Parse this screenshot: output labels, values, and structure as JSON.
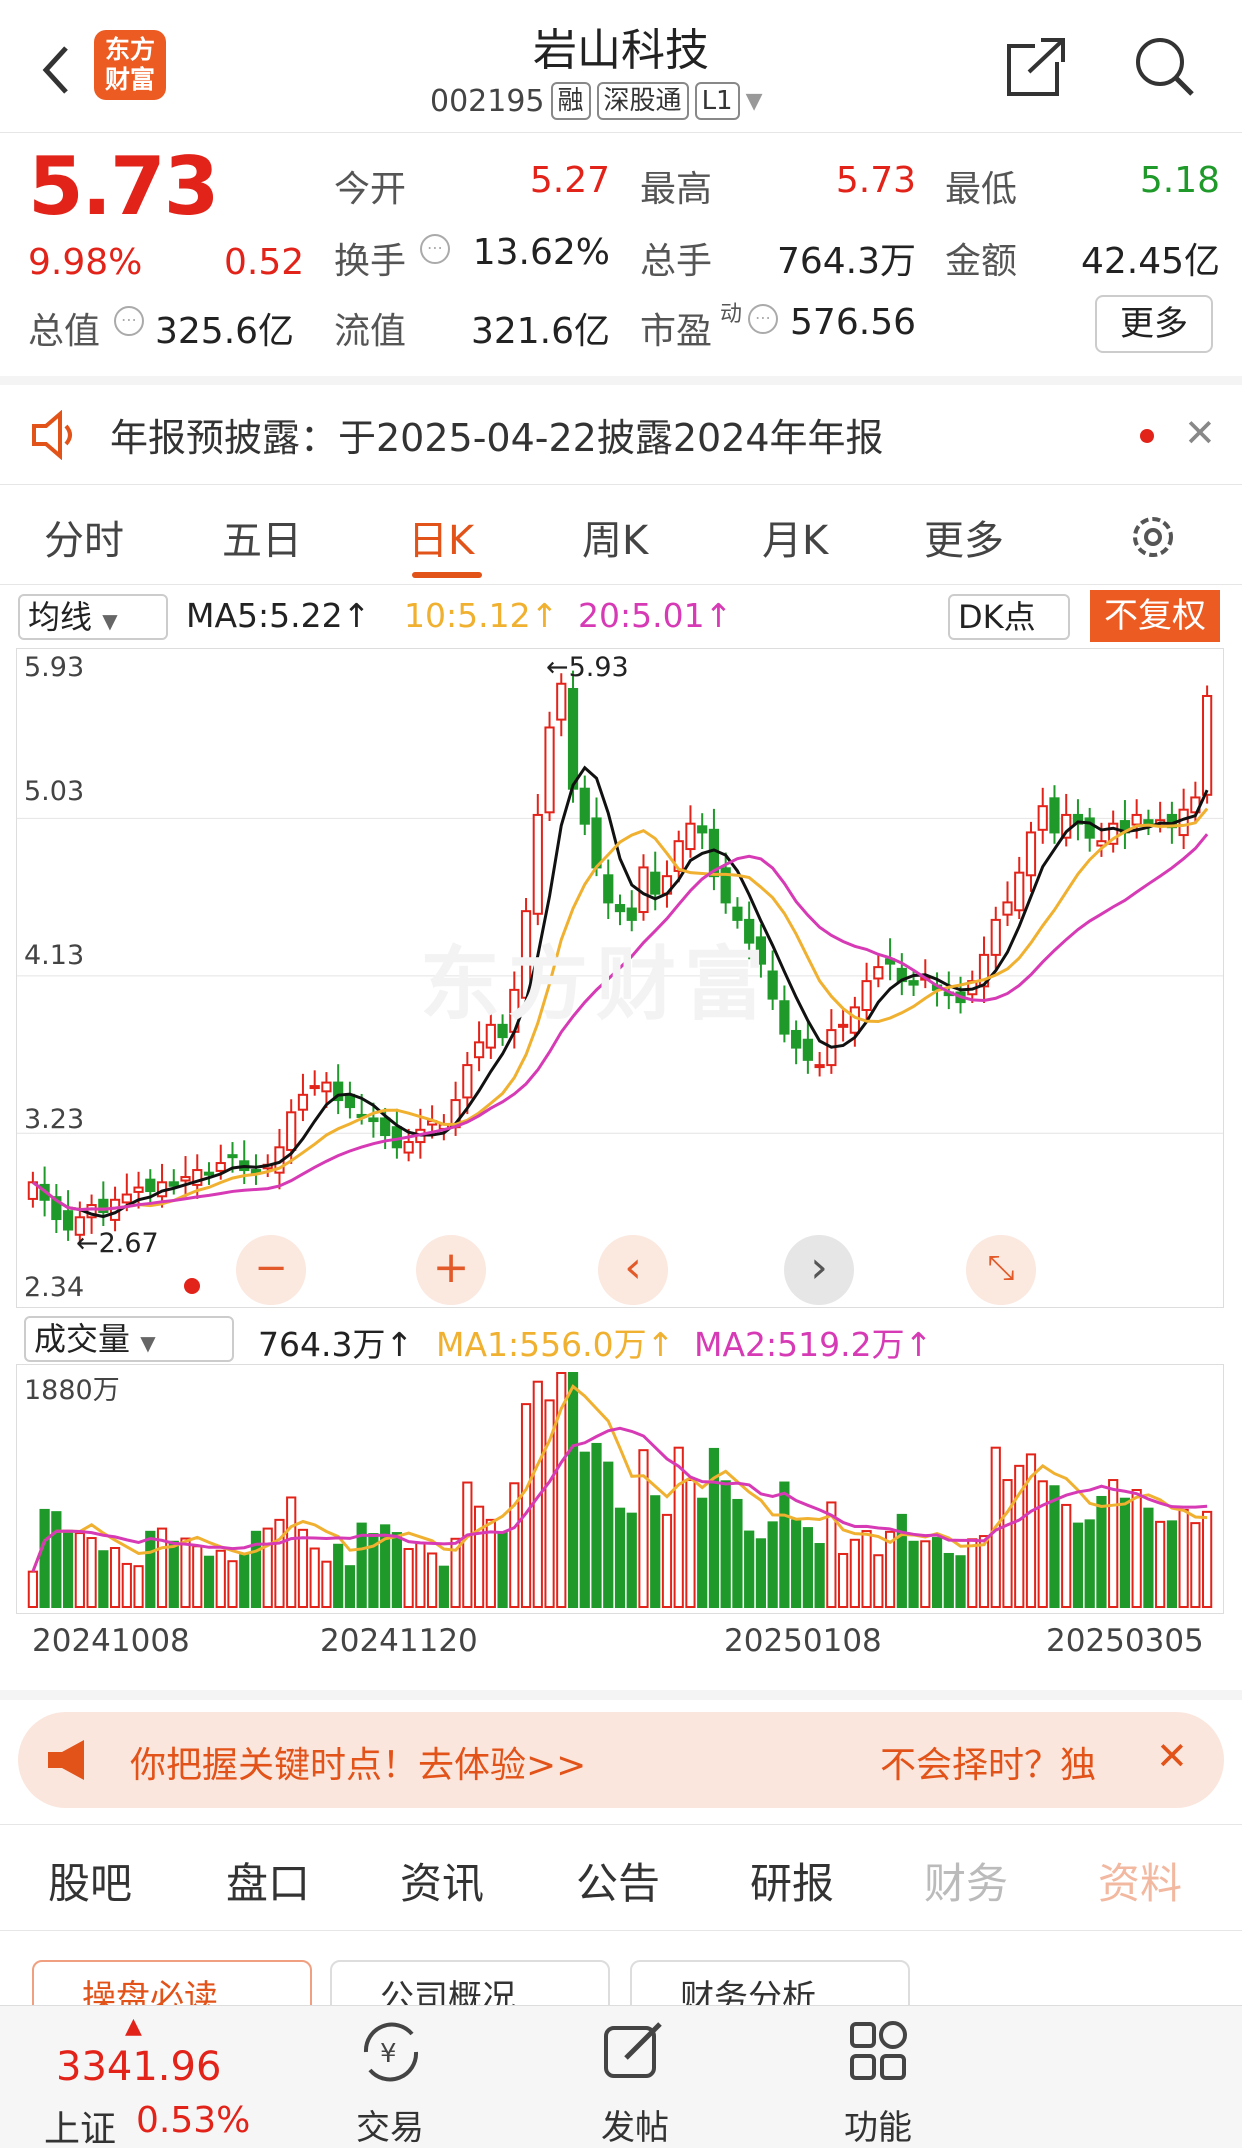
{
  "header": {
    "logo_text": "东方\n财富",
    "title": "岩山科技",
    "code": "002195",
    "tags": [
      "融",
      "深股通",
      "L1"
    ]
  },
  "quote": {
    "price": "5.73",
    "change_pct": "9.98%",
    "change": "0.52",
    "open_label": "今开",
    "open": "5.27",
    "high_label": "最高",
    "high": "5.73",
    "low_label": "最低",
    "low": "5.18",
    "turnover_label": "换手",
    "turnover": "13.62%",
    "volume_label": "总手",
    "volume": "764.3万",
    "amount_label": "金额",
    "amount": "42.45亿",
    "mktcap_label": "总值",
    "mktcap": "325.6亿",
    "float_label": "流值",
    "float": "321.6亿",
    "pe_label": "市盈",
    "pe_sup": "动",
    "pe": "576.56",
    "more_label": "更多"
  },
  "notice": {
    "text": "年报预披露：于2025-04-22披露2024年年报"
  },
  "chart_tabs": [
    "分时",
    "五日",
    "日K",
    "周K",
    "月K",
    "更多"
  ],
  "kline": {
    "indicator_select": "均线",
    "ma5": "MA5:5.22↑",
    "ma10": "10:5.12↑",
    "ma20": "20:5.01↑",
    "dk_label": "DK点",
    "adjust_label": "不复权",
    "y_ticks": [
      "5.93",
      "5.03",
      "4.13",
      "3.23",
      "2.34"
    ],
    "max_marker": "←5.93",
    "min_marker": "←2.67",
    "watermark": "东方财富"
  },
  "volume": {
    "select": "成交量",
    "value": "764.3万↑",
    "ma1": "MA1:556.0万↑",
    "ma2": "MA2:519.2万↑",
    "y_top": "1880万",
    "x_ticks": [
      "20241008",
      "20241120",
      "20250108",
      "20250305"
    ]
  },
  "chart_data": {
    "type": "candlestick",
    "ylim": [
      2.34,
      5.93
    ],
    "annotations": {
      "max": 5.93,
      "min": 2.67
    },
    "closes": [
      2.95,
      2.85,
      2.74,
      2.68,
      2.75,
      2.82,
      2.78,
      2.85,
      2.88,
      2.92,
      2.9,
      2.95,
      2.93,
      2.98,
      3.02,
      3.0,
      3.06,
      3.1,
      3.02,
      3.0,
      3.05,
      3.15,
      3.35,
      3.45,
      3.5,
      3.52,
      3.42,
      3.38,
      3.33,
      3.3,
      3.22,
      3.15,
      3.18,
      3.25,
      3.3,
      3.28,
      3.42,
      3.62,
      3.75,
      3.85,
      3.78,
      4.05,
      4.5,
      5.05,
      5.55,
      5.8,
      5.2,
      5.0,
      4.75,
      4.55,
      4.5,
      4.45,
      4.75,
      4.6,
      4.7,
      4.9,
      5.0,
      4.95,
      4.7,
      4.55,
      4.45,
      4.32,
      4.2,
      4.0,
      3.8,
      3.72,
      3.65,
      3.62,
      3.82,
      3.85,
      3.95,
      4.1,
      4.18,
      4.2,
      4.1,
      4.08,
      4.12,
      4.05,
      4.02,
      3.98,
      4.1,
      4.25,
      4.45,
      4.55,
      4.72,
      4.95,
      5.1,
      4.95,
      5.05,
      5.0,
      4.92,
      4.9,
      5.0,
      4.95,
      5.05,
      5.0,
      5.02,
      4.98,
      5.08,
      5.15,
      5.73
    ],
    "volume_ylim": [
      0,
      1880
    ],
    "volume_ma1": 556.0,
    "volume_ma2": 519.2,
    "volume_last": 764.3
  },
  "ad": {
    "text": "你把握关键时点！去体验>>",
    "right_text": "不会择时？独"
  },
  "bottom_tabs": [
    "股吧",
    "盘口",
    "资讯",
    "公告",
    "研报",
    "财务",
    "资料"
  ],
  "sub_tabs": [
    "操盘必读",
    "公司概况",
    "财务分析"
  ],
  "index": {
    "value": "3341.96",
    "name": "上证",
    "pct": "0.53%"
  },
  "bottom_nav": [
    "交易",
    "发帖",
    "功能"
  ]
}
